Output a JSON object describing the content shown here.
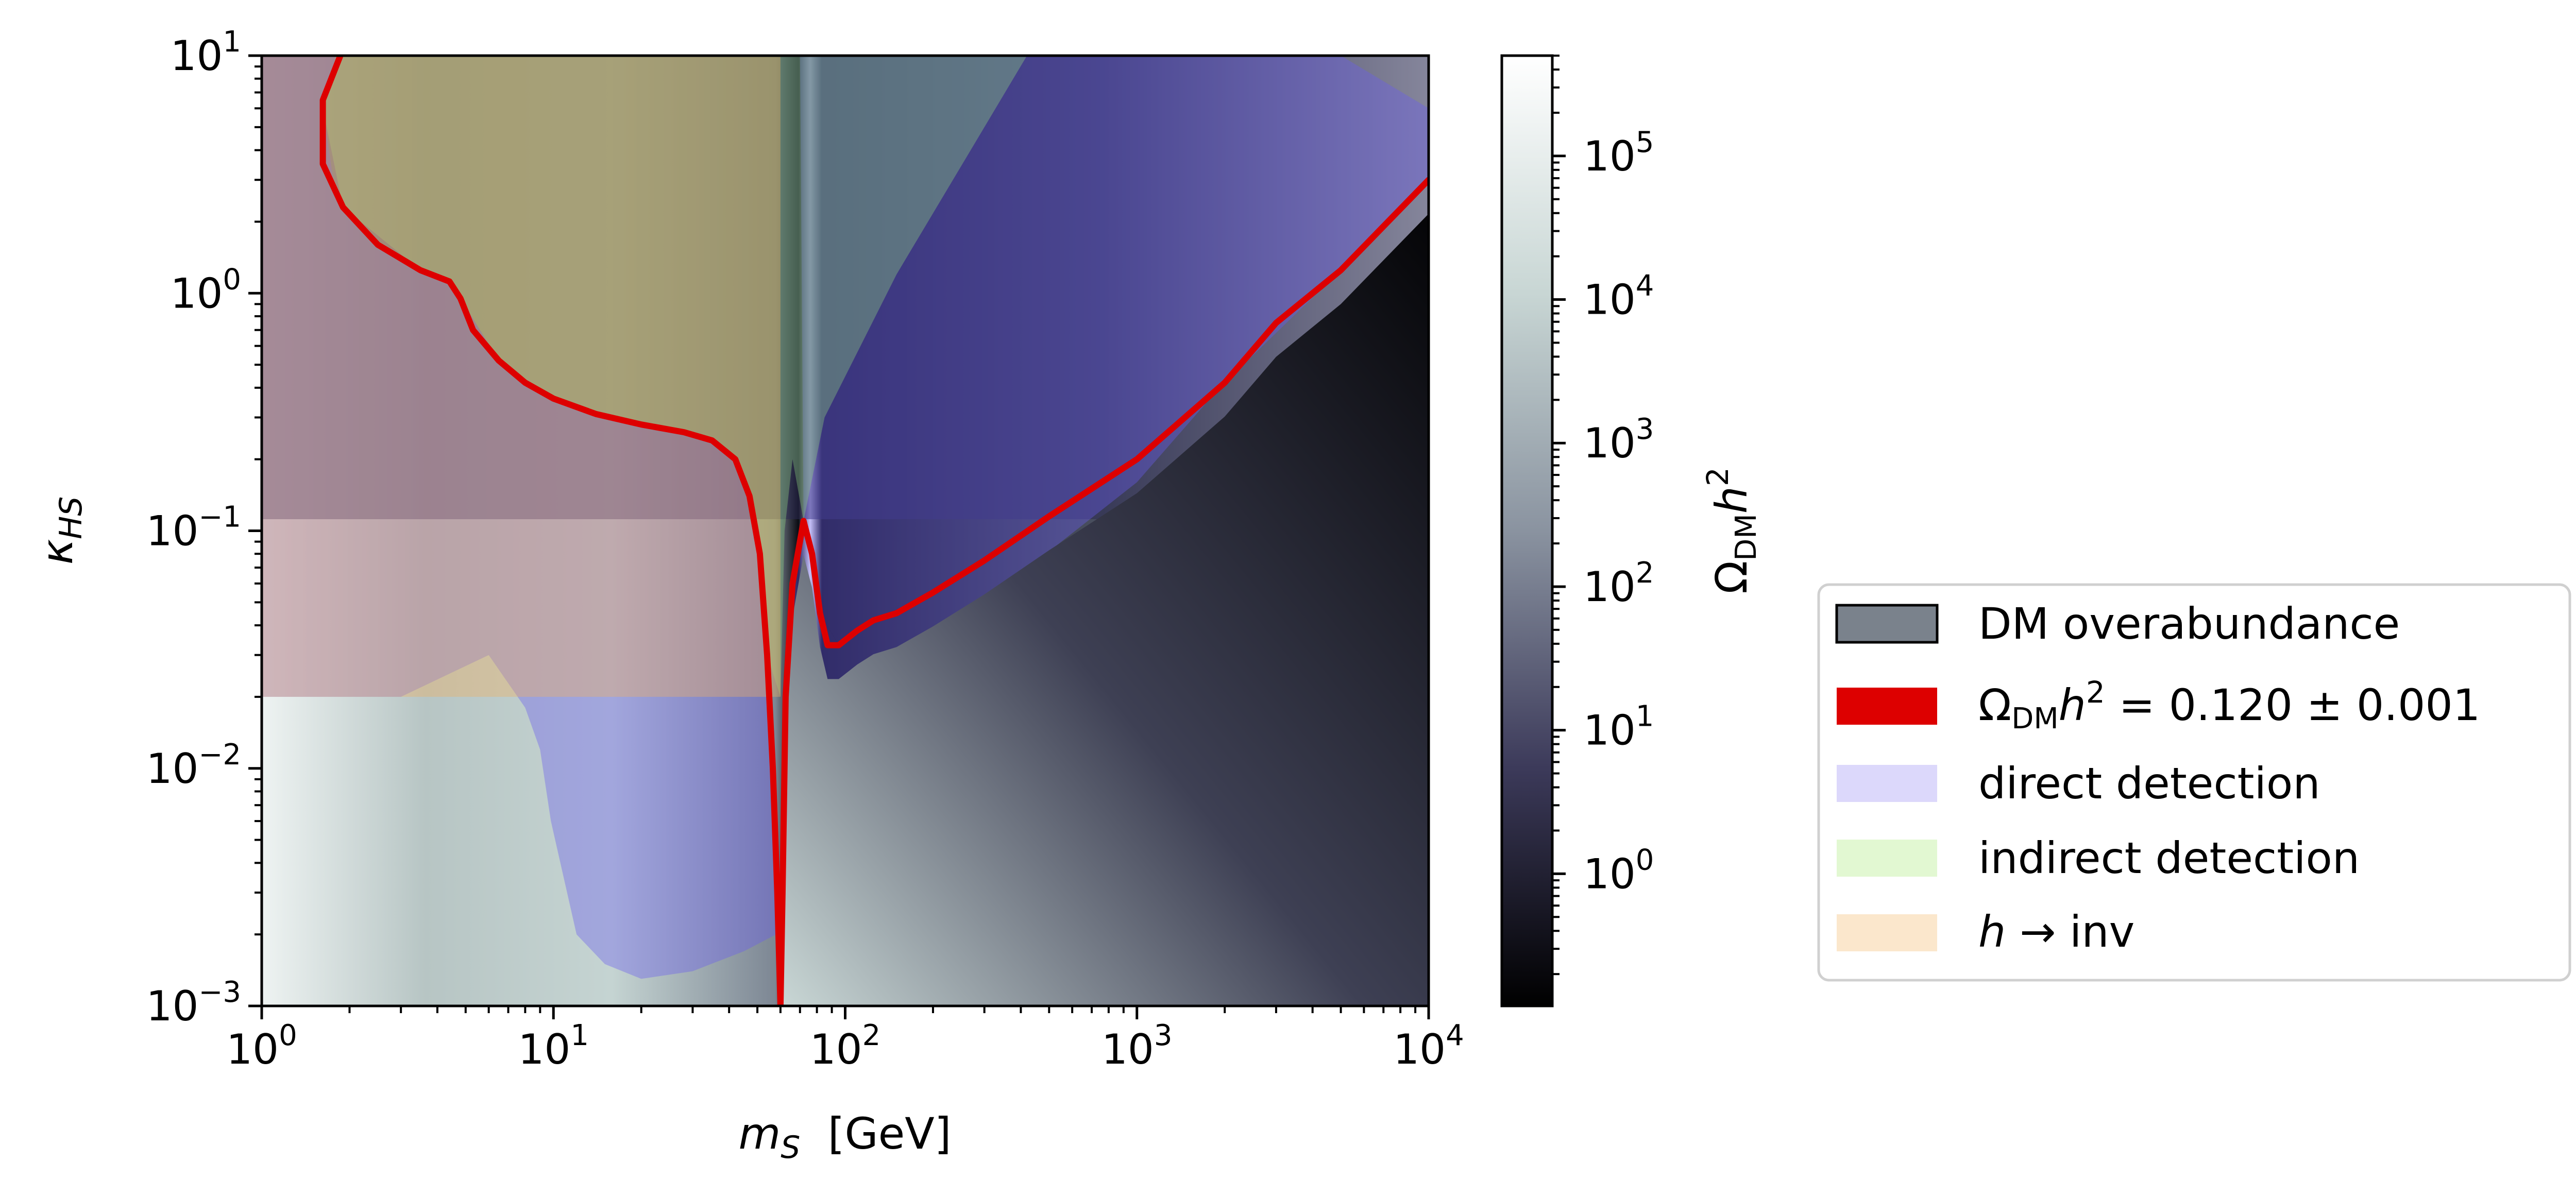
{
  "chart_data": {
    "type": "heatmap",
    "xscale": "log",
    "yscale": "log",
    "xlim": [
      1,
      10000
    ],
    "ylim": [
      0.001,
      10
    ],
    "xlabel": {
      "var": "m",
      "sub": "S",
      "unit": "  [GeV]"
    },
    "ylabel": {
      "var": "κ",
      "sub": "HS"
    },
    "x_ticks": [
      {
        "base": "10",
        "exp": "0"
      },
      {
        "base": "10",
        "exp": "1"
      },
      {
        "base": "10",
        "exp": "2"
      },
      {
        "base": "10",
        "exp": "3"
      },
      {
        "base": "10",
        "exp": "4"
      }
    ],
    "y_ticks": [
      {
        "base": "10",
        "exp": "−3"
      },
      {
        "base": "10",
        "exp": "−2"
      },
      {
        "base": "10",
        "exp": "−1"
      },
      {
        "base": "10",
        "exp": "0"
      },
      {
        "base": "10",
        "exp": "1"
      }
    ],
    "grid": false,
    "colorbar": {
      "label": "Ω_DM h²",
      "label_parts": {
        "omega": "Ω",
        "sub": "DM",
        "var": "h",
        "sup": "2"
      },
      "scale": "log",
      "range": [
        0.12,
        500000
      ],
      "ticks": [
        {
          "base": "10",
          "exp": "0"
        },
        {
          "base": "10",
          "exp": "1"
        },
        {
          "base": "10",
          "exp": "2"
        },
        {
          "base": "10",
          "exp": "3"
        },
        {
          "base": "10",
          "exp": "4"
        },
        {
          "base": "10",
          "exp": "5"
        }
      ],
      "colormap": [
        "#000000",
        "#3c3a5a",
        "#8a93a0",
        "#c8d6d4",
        "#ffffff"
      ]
    },
    "relic_density_curve": {
      "color": "#dd0000",
      "points": [
        [
          1.86,
          10
        ],
        [
          1.62,
          6.5
        ],
        [
          1.62,
          3.5
        ],
        [
          1.9,
          2.3
        ],
        [
          2.5,
          1.6
        ],
        [
          3.5,
          1.25
        ],
        [
          4.4,
          1.12
        ],
        [
          4.8,
          0.95
        ],
        [
          5.3,
          0.7
        ],
        [
          6.5,
          0.52
        ],
        [
          8,
          0.42
        ],
        [
          10,
          0.36
        ],
        [
          14,
          0.31
        ],
        [
          20,
          0.28
        ],
        [
          28,
          0.26
        ],
        [
          35,
          0.24
        ],
        [
          42,
          0.2
        ],
        [
          47,
          0.14
        ],
        [
          51,
          0.08
        ],
        [
          54,
          0.03
        ],
        [
          56.5,
          0.01
        ],
        [
          58.5,
          0.003
        ],
        [
          60,
          0.001
        ],
        [
          61,
          0.003
        ],
        [
          62.5,
          0.02
        ],
        [
          66,
          0.06
        ],
        [
          72,
          0.11
        ],
        [
          77,
          0.08
        ],
        [
          82,
          0.045
        ],
        [
          87,
          0.033
        ],
        [
          95,
          0.033
        ],
        [
          110,
          0.038
        ],
        [
          125,
          0.042
        ],
        [
          150,
          0.045
        ],
        [
          200,
          0.055
        ],
        [
          300,
          0.075
        ],
        [
          500,
          0.115
        ],
        [
          1000,
          0.2
        ],
        [
          2000,
          0.42
        ],
        [
          3000,
          0.75
        ],
        [
          5000,
          1.25
        ],
        [
          10000,
          3.0
        ]
      ]
    },
    "excluded_regions": [
      {
        "name": "direct detection",
        "color": "#6a5cf0",
        "points": [
          [
            1.8,
            10
          ],
          [
            1.62,
            6
          ],
          [
            1.8,
            2.5
          ],
          [
            2.5,
            1.6
          ],
          [
            4.4,
            1.12
          ],
          [
            4.8,
            0.95
          ],
          [
            6.5,
            0.52
          ],
          [
            10,
            0.36
          ],
          [
            20,
            0.28
          ],
          [
            35,
            0.24
          ],
          [
            42,
            0.2
          ],
          [
            47,
            0.14
          ],
          [
            51,
            0.08
          ],
          [
            54,
            0.03
          ],
          [
            56.5,
            0.01
          ],
          [
            58.5,
            0.003
          ],
          [
            58,
            0.002
          ],
          [
            45,
            0.0017
          ],
          [
            30,
            0.0014
          ],
          [
            20,
            0.0013
          ],
          [
            15,
            0.0015
          ],
          [
            12,
            0.002
          ],
          [
            9.8,
            0.006
          ],
          [
            9,
            0.012
          ],
          [
            8,
            0.018
          ],
          [
            6,
            0.03
          ],
          [
            3,
            0.02
          ],
          [
            1,
            0.02
          ],
          [
            1,
            10
          ]
        ]
      },
      {
        "name": "direct detection",
        "color": "#6a5cf0",
        "points": [
          [
            70,
            10
          ],
          [
            5000,
            10
          ],
          [
            10000,
            6
          ],
          [
            10000,
            3.0
          ],
          [
            5000,
            1.25
          ],
          [
            2000,
            0.42
          ],
          [
            1000,
            0.2
          ],
          [
            500,
            0.115
          ],
          [
            200,
            0.055
          ],
          [
            125,
            0.042
          ],
          [
            95,
            0.033
          ],
          [
            82,
            0.045
          ],
          [
            77,
            0.08
          ],
          [
            72,
            0.11
          ]
        ]
      },
      {
        "name": "direct detection",
        "color": "#6a5cf0",
        "points": [
          [
            61,
            0.003
          ],
          [
            62.5,
            0.02
          ],
          [
            66,
            0.06
          ],
          [
            72,
            0.11
          ],
          [
            82,
            0.045
          ],
          [
            95,
            0.033
          ],
          [
            125,
            0.042
          ],
          [
            200,
            0.055
          ],
          [
            500,
            0.115
          ],
          [
            1000,
            0.2
          ],
          [
            2000,
            0.42
          ],
          [
            3000,
            0.75
          ],
          [
            1000,
            0.16
          ],
          [
            300,
            0.05
          ],
          [
            100,
            0.012
          ],
          [
            65,
            0.0045
          ]
        ]
      },
      {
        "name": "indirect detection",
        "color": "#8fd080",
        "points": [
          [
            1.8,
            10
          ],
          [
            1.62,
            6
          ],
          [
            1.9,
            2.3
          ],
          [
            3.5,
            1.25
          ],
          [
            4.4,
            1.12
          ],
          [
            4.8,
            0.95
          ],
          [
            6.5,
            0.52
          ],
          [
            10,
            0.36
          ],
          [
            20,
            0.28
          ],
          [
            35,
            0.24
          ],
          [
            42,
            0.2
          ],
          [
            47,
            0.14
          ],
          [
            51,
            0.08
          ],
          [
            54,
            0.03
          ],
          [
            60,
            0.02
          ],
          [
            62,
            0.1
          ],
          [
            66,
            0.2
          ],
          [
            72,
            0.11
          ],
          [
            85,
            0.3
          ],
          [
            150,
            1.2
          ],
          [
            300,
            5
          ],
          [
            420,
            10
          ]
        ]
      },
      {
        "name": "h → inv",
        "color": "#f0b060",
        "points": [
          [
            1,
            10
          ],
          [
            60,
            10
          ],
          [
            60,
            0.02
          ],
          [
            1,
            0.02
          ]
        ]
      }
    ],
    "legend": {
      "placement": "right",
      "entries": [
        {
          "label": "DM overabundance",
          "color": "#7a828c",
          "kind": "patch-edge"
        },
        {
          "label": "Ω_DM h² = 0.120 ± 0.001",
          "color": "#dd0000",
          "kind": "line",
          "parts": {
            "omega": "Ω",
            "sub": "DM",
            "var": "h",
            "sup": "2",
            "rest": " = 0.120 ± 0.001"
          }
        },
        {
          "label": "direct detection",
          "color": "#dcd8fb",
          "kind": "patch"
        },
        {
          "label": "indirect detection",
          "color": "#e2f8d2",
          "kind": "patch"
        },
        {
          "label": "h → inv",
          "color": "#fbe7cc",
          "kind": "patch",
          "parts": {
            "var": "h",
            "rest": " → inv"
          }
        }
      ]
    }
  }
}
